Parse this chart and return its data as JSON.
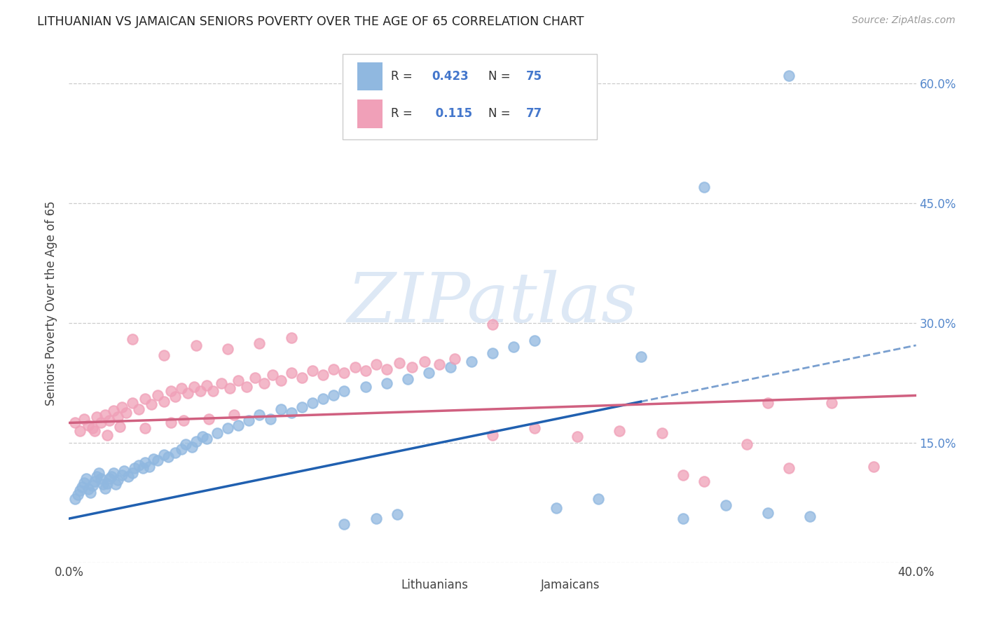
{
  "title": "LITHUANIAN VS JAMAICAN SENIORS POVERTY OVER THE AGE OF 65 CORRELATION CHART",
  "source": "Source: ZipAtlas.com",
  "ylabel": "Seniors Poverty Over the Age of 65",
  "xlim": [
    0.0,
    0.4
  ],
  "ylim": [
    0.0,
    0.65
  ],
  "ytick_labels": [
    "",
    "15.0%",
    "30.0%",
    "45.0%",
    "60.0%"
  ],
  "ytick_values": [
    0.0,
    0.15,
    0.3,
    0.45,
    0.6
  ],
  "xtick_values": [
    0.0,
    0.05,
    0.1,
    0.15,
    0.2,
    0.25,
    0.3,
    0.35,
    0.4
  ],
  "R_lithuanian": 0.423,
  "N_lithuanian": 75,
  "R_jamaican": 0.115,
  "N_jamaican": 77,
  "color_lithuanian": "#90b8e0",
  "color_jamaican": "#f0a0b8",
  "trendline_color_lithuanian": "#2060b0",
  "trendline_color_jamaican": "#d06080",
  "watermark_text": "ZIPatlas",
  "watermark_color": "#dde8f5",
  "lit_x": [
    0.003,
    0.004,
    0.005,
    0.006,
    0.007,
    0.008,
    0.009,
    0.01,
    0.011,
    0.012,
    0.013,
    0.014,
    0.015,
    0.016,
    0.017,
    0.018,
    0.019,
    0.02,
    0.021,
    0.022,
    0.023,
    0.025,
    0.026,
    0.028,
    0.03,
    0.031,
    0.033,
    0.035,
    0.036,
    0.038,
    0.04,
    0.042,
    0.045,
    0.047,
    0.05,
    0.053,
    0.055,
    0.058,
    0.06,
    0.063,
    0.065,
    0.07,
    0.075,
    0.08,
    0.085,
    0.09,
    0.095,
    0.1,
    0.105,
    0.11,
    0.115,
    0.12,
    0.125,
    0.13,
    0.14,
    0.15,
    0.16,
    0.17,
    0.18,
    0.19,
    0.13,
    0.145,
    0.155,
    0.2,
    0.21,
    0.22,
    0.23,
    0.25,
    0.27,
    0.29,
    0.31,
    0.33,
    0.35,
    0.3,
    0.34
  ],
  "lit_y": [
    0.08,
    0.085,
    0.09,
    0.095,
    0.1,
    0.105,
    0.092,
    0.088,
    0.096,
    0.102,
    0.108,
    0.112,
    0.105,
    0.098,
    0.093,
    0.099,
    0.105,
    0.108,
    0.112,
    0.098,
    0.103,
    0.11,
    0.115,
    0.108,
    0.112,
    0.118,
    0.122,
    0.118,
    0.125,
    0.12,
    0.13,
    0.128,
    0.135,
    0.132,
    0.138,
    0.142,
    0.148,
    0.145,
    0.152,
    0.158,
    0.155,
    0.162,
    0.168,
    0.172,
    0.178,
    0.185,
    0.18,
    0.192,
    0.188,
    0.195,
    0.2,
    0.205,
    0.21,
    0.215,
    0.22,
    0.225,
    0.23,
    0.238,
    0.245,
    0.252,
    0.048,
    0.055,
    0.06,
    0.262,
    0.27,
    0.278,
    0.068,
    0.08,
    0.258,
    0.055,
    0.072,
    0.062,
    0.058,
    0.47,
    0.61
  ],
  "jam_x": [
    0.003,
    0.005,
    0.007,
    0.009,
    0.011,
    0.013,
    0.015,
    0.017,
    0.019,
    0.021,
    0.023,
    0.025,
    0.027,
    0.03,
    0.033,
    0.036,
    0.039,
    0.042,
    0.045,
    0.048,
    0.05,
    0.053,
    0.056,
    0.059,
    0.062,
    0.065,
    0.068,
    0.072,
    0.076,
    0.08,
    0.084,
    0.088,
    0.092,
    0.096,
    0.1,
    0.105,
    0.11,
    0.115,
    0.12,
    0.125,
    0.13,
    0.135,
    0.14,
    0.145,
    0.15,
    0.156,
    0.162,
    0.168,
    0.175,
    0.182,
    0.03,
    0.045,
    0.06,
    0.075,
    0.09,
    0.105,
    0.012,
    0.018,
    0.024,
    0.036,
    0.048,
    0.054,
    0.066,
    0.078,
    0.2,
    0.22,
    0.24,
    0.26,
    0.28,
    0.3,
    0.32,
    0.34,
    0.36,
    0.38,
    0.2,
    0.29,
    0.33
  ],
  "jam_y": [
    0.175,
    0.165,
    0.18,
    0.172,
    0.168,
    0.182,
    0.175,
    0.185,
    0.178,
    0.19,
    0.182,
    0.195,
    0.188,
    0.2,
    0.192,
    0.205,
    0.198,
    0.21,
    0.202,
    0.215,
    0.208,
    0.218,
    0.212,
    0.22,
    0.215,
    0.222,
    0.215,
    0.225,
    0.218,
    0.228,
    0.22,
    0.232,
    0.225,
    0.235,
    0.228,
    0.238,
    0.232,
    0.24,
    0.235,
    0.242,
    0.238,
    0.245,
    0.24,
    0.248,
    0.242,
    0.25,
    0.245,
    0.252,
    0.248,
    0.255,
    0.28,
    0.26,
    0.272,
    0.268,
    0.275,
    0.282,
    0.165,
    0.16,
    0.17,
    0.168,
    0.175,
    0.178,
    0.18,
    0.185,
    0.16,
    0.168,
    0.158,
    0.165,
    0.162,
    0.102,
    0.148,
    0.118,
    0.2,
    0.12,
    0.298,
    0.11,
    0.2
  ],
  "background_color": "#ffffff",
  "grid_color": "#cccccc"
}
